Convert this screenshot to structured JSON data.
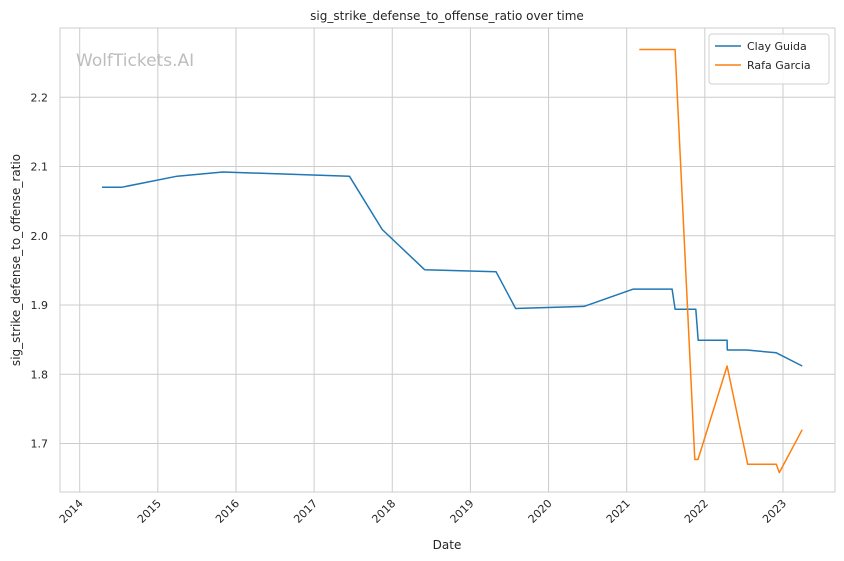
{
  "chart_data": {
    "type": "line",
    "title": "sig_strike_defense_to_offense_ratio over time",
    "xlabel": "Date",
    "ylabel": "sig_strike_defense_to_offense_ratio",
    "watermark": "WolfTickets.AI",
    "x_ticks": [
      "2014",
      "2015",
      "2016",
      "2017",
      "2018",
      "2019",
      "2020",
      "2021",
      "2022",
      "2023"
    ],
    "y_ticks": [
      "1.7",
      "1.8",
      "1.9",
      "2.0",
      "2.1",
      "2.2"
    ],
    "xlim": [
      "2013-10-01",
      "2023-09-01"
    ],
    "ylim": [
      1.63,
      2.3
    ],
    "grid": true,
    "legend_position": "top-right",
    "series": [
      {
        "name": "Clay Guida",
        "color": "#1f77b4",
        "points": [
          [
            "2014-04-15",
            2.07
          ],
          [
            "2014-07-15",
            2.07
          ],
          [
            "2015-04-01",
            2.086
          ],
          [
            "2015-11-01",
            2.092
          ],
          [
            "2017-06-15",
            2.086
          ],
          [
            "2017-11-15",
            2.009
          ],
          [
            "2018-06-01",
            1.951
          ],
          [
            "2019-05-01",
            1.948
          ],
          [
            "2019-07-31",
            1.895
          ],
          [
            "2020-06-15",
            1.898
          ],
          [
            "2021-02-01",
            1.923
          ],
          [
            "2021-08-01",
            1.923
          ],
          [
            "2021-08-15",
            1.894
          ],
          [
            "2021-11-20",
            1.894
          ],
          [
            "2021-12-01",
            1.849
          ],
          [
            "2022-04-15",
            1.849
          ],
          [
            "2022-04-16",
            1.835
          ],
          [
            "2022-07-15",
            1.835
          ],
          [
            "2022-12-01",
            1.831
          ],
          [
            "2023-04-01",
            1.812
          ]
        ]
      },
      {
        "name": "Rafa Garcia",
        "color": "#ff7f0e",
        "points": [
          [
            "2021-03-01",
            2.269
          ],
          [
            "2021-08-15",
            2.269
          ],
          [
            "2021-11-15",
            1.677
          ],
          [
            "2021-11-30",
            1.677
          ],
          [
            "2022-04-15",
            1.812
          ],
          [
            "2022-07-20",
            1.67
          ],
          [
            "2022-12-01",
            1.67
          ],
          [
            "2022-12-15",
            1.658
          ],
          [
            "2023-04-01",
            1.72
          ]
        ]
      }
    ]
  }
}
